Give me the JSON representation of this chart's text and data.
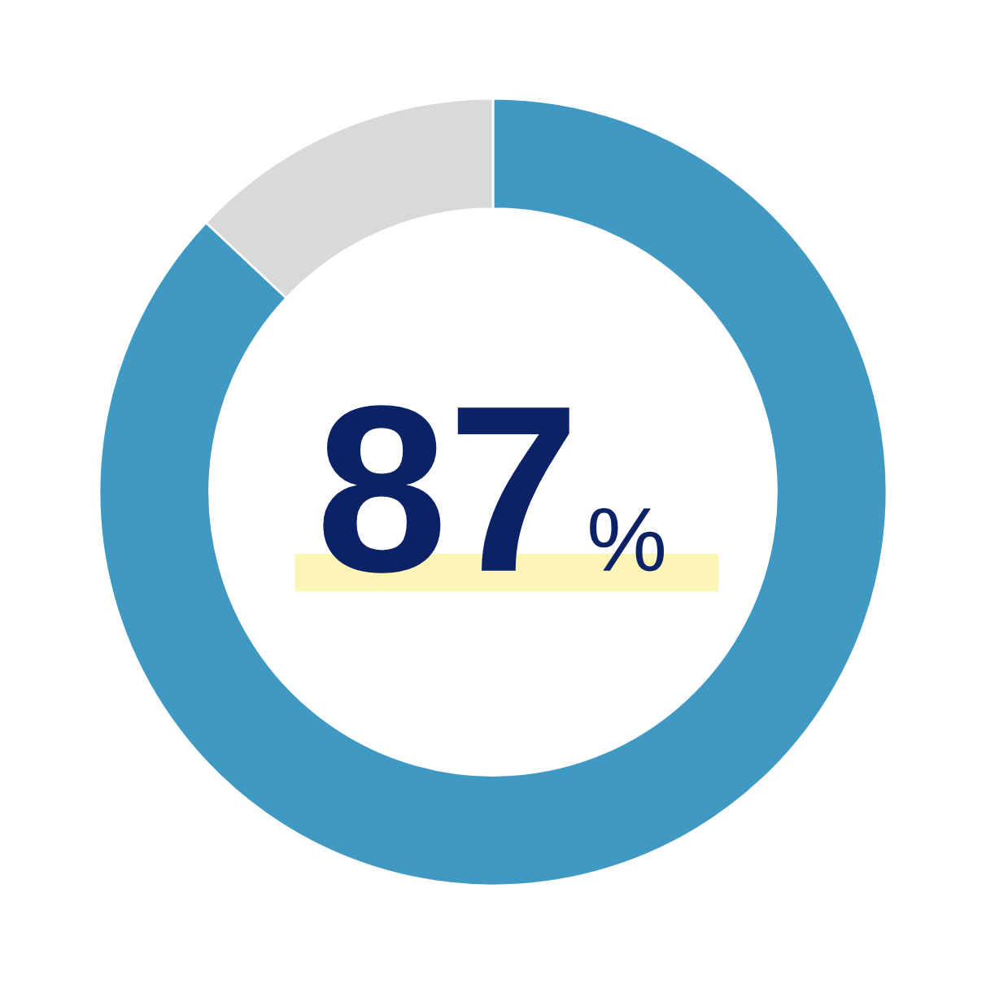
{
  "chart_data": {
    "type": "donut",
    "categories": [
      null,
      null
    ],
    "values": [
      87,
      13
    ],
    "colors": [
      "#3f99c2",
      "#d9d9d9"
    ],
    "annotations": [
      "87",
      "%"
    ]
  }
}
